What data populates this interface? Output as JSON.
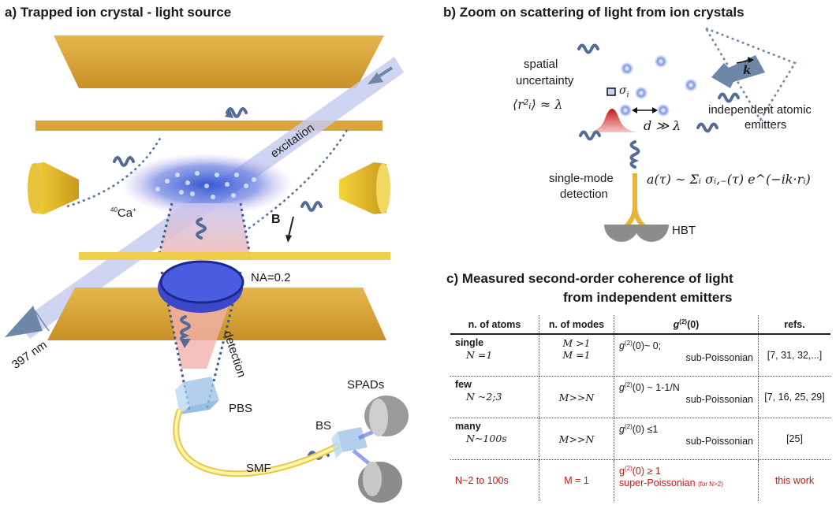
{
  "panel_a": {
    "title": "a) Trapped ion crystal - light source",
    "labels": {
      "excitation": "excitation",
      "ion_species_mass": "40",
      "ion_species": "Ca",
      "ion_charge": "+",
      "magnetic_field": "B",
      "numerical_aperture": "NA=0.2",
      "wavelength": "397 nm",
      "detection": "detection",
      "pbs": "PBS",
      "spads": "SPADs",
      "bs": "BS",
      "smf": "SMF"
    }
  },
  "panel_b": {
    "title": "b) Zoom on scattering of light from ion crystals",
    "labels": {
      "spatial_uncertainty_1": "spatial",
      "spatial_uncertainty_2": "uncertainty",
      "sigma": "σ",
      "sigma_sub": "i",
      "uncertainty_formula": "⟨r²ᵢ⟩ ≈ λ",
      "k_vector": "k",
      "independent_1": "independent atomic",
      "independent_2": "emitters",
      "distance": "d ≫ λ",
      "single_mode_1": "single-mode",
      "single_mode_2": "detection",
      "amplitude_formula": "a(τ) ∼ Σᵢ σᵢ,₋(τ) e^(−ik·rᵢ)",
      "hbt": "HBT"
    }
  },
  "panel_c": {
    "title_line1": "c) Measured second-order coherence of light",
    "title_line2": "from independent emitters",
    "headers": {
      "atoms": "n. of atoms",
      "modes": "n. of modes",
      "g2_sup": "(2)",
      "g2_base": "g",
      "g2_arg": "(0)",
      "refs": "refs."
    },
    "rows": [
      {
        "atoms_label": "single",
        "atoms_value": "N =1",
        "modes_1": "M >1",
        "modes_2": "M =1",
        "g2_main": "(0)~ 0;",
        "g2_note": "sub-Poissonian",
        "refs": "[7, 31, 32,...]"
      },
      {
        "atoms_label": "few",
        "atoms_value": "N ~2;3",
        "modes_1": "M>>N",
        "modes_2": "",
        "g2_main": "(0) ~ 1-1/N",
        "g2_note": "sub-Poissonian",
        "refs": "[7, 16, 25, 29]"
      },
      {
        "atoms_label": "many",
        "atoms_value": "N~100s",
        "modes_1": "M>>N",
        "modes_2": "",
        "g2_main": "(0) ≤1",
        "g2_note": "sub-Poissonian",
        "refs": "[25]"
      },
      {
        "atoms_label": "",
        "atoms_value": "N~2 to 100s",
        "modes_1": "M = 1",
        "modes_2": "",
        "g2_main": "(0) ≥ 1",
        "g2_note": "super-Poissonian",
        "g2_note_small": "(for N>2)",
        "refs": "this work"
      }
    ]
  },
  "colors": {
    "gold": "#d9a43a",
    "blue_ion": "#4c6fd6",
    "arrow": "#6e86a8",
    "highlight_red": "#c41a1a"
  }
}
